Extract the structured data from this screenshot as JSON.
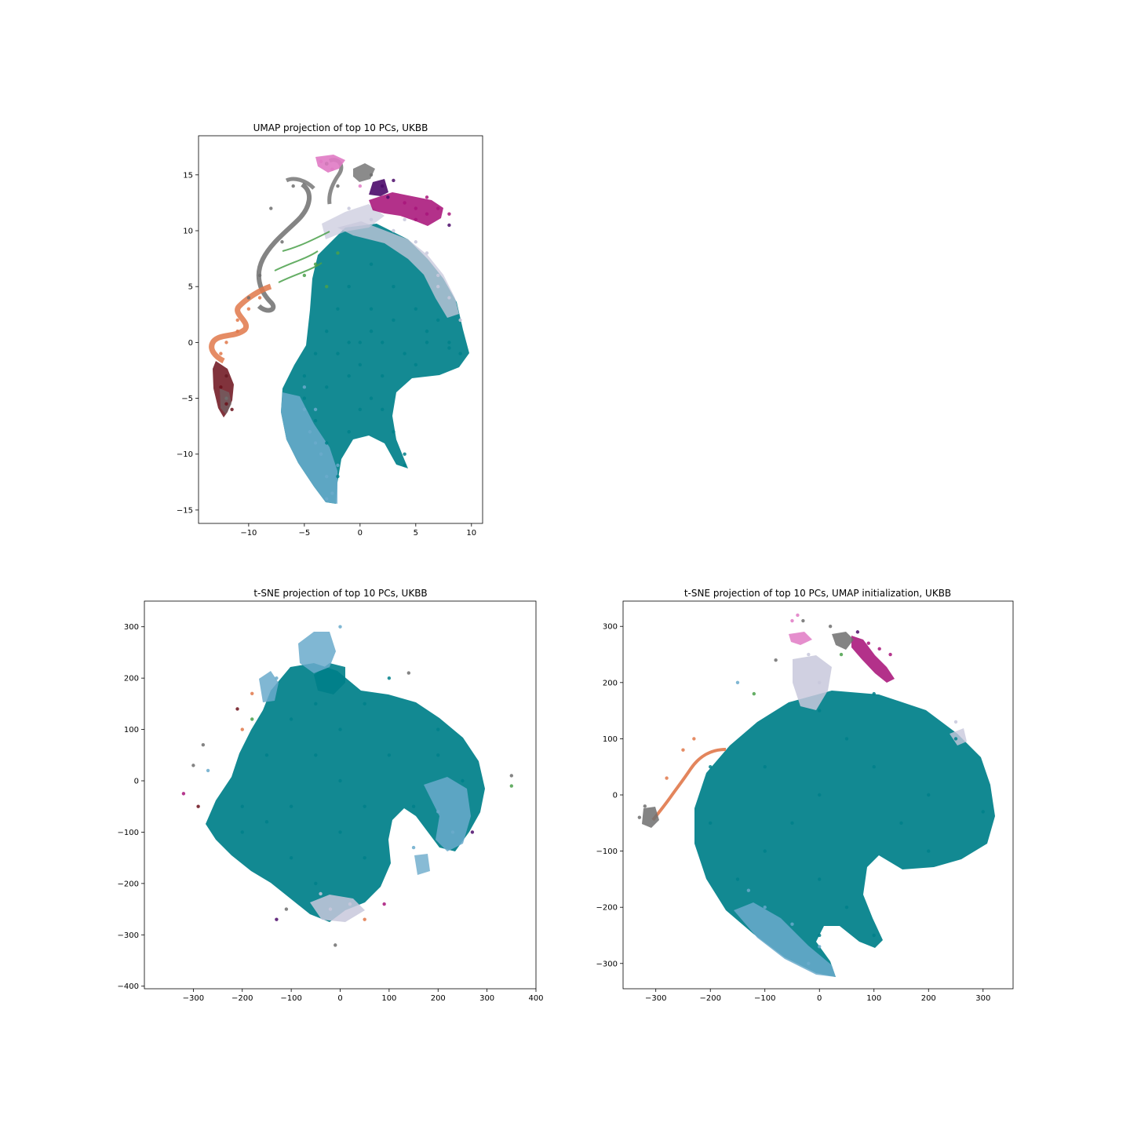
{
  "colors": {
    "teal": "#00808a",
    "lightblue": "#6aaacb",
    "lavender": "#c8c8dc",
    "gray": "#6e6e6e",
    "orange": "#e0784a",
    "maroon": "#6b0f1a",
    "magenta": "#a8157a",
    "purple": "#4b0a6a",
    "pink": "#e07ac4",
    "green": "#4aa04a"
  },
  "chart_data": [
    {
      "type": "scatter",
      "title": "UMAP projection of top 10 PCs, UKBB",
      "xlim": [
        -14.5,
        11
      ],
      "ylim": [
        -16.2,
        18.5
      ],
      "xticks": [
        -10,
        -5,
        0,
        5,
        10
      ],
      "yticks": [
        -15,
        -10,
        -5,
        0,
        5,
        10,
        15
      ],
      "xticklabels": [
        "−10",
        "−5",
        "0",
        "5",
        "10"
      ],
      "yticklabels": [
        "−15",
        "−10",
        "−5",
        "0",
        "5",
        "10",
        "15"
      ],
      "series": [
        {
          "color": "teal",
          "points": [
            [
              0,
              0
            ],
            [
              2,
              0
            ],
            [
              4,
              -1
            ],
            [
              6,
              0
            ],
            [
              8,
              0
            ],
            [
              9,
              -1
            ],
            [
              7,
              2
            ],
            [
              5,
              3
            ],
            [
              3,
              5
            ],
            [
              1,
              7
            ],
            [
              -1,
              5
            ],
            [
              -2,
              3
            ],
            [
              -3,
              1
            ],
            [
              -4,
              -1
            ],
            [
              -5,
              -3
            ],
            [
              -5,
              -5
            ],
            [
              -4,
              -7
            ],
            [
              -3,
              -9
            ],
            [
              -2,
              -12
            ],
            [
              -1,
              -8
            ],
            [
              0,
              -6
            ],
            [
              1,
              -5
            ],
            [
              2,
              -6
            ],
            [
              3,
              -8
            ],
            [
              4,
              -10
            ],
            [
              4,
              -11
            ],
            [
              2,
              -3
            ],
            [
              0,
              -2
            ],
            [
              -2,
              -1
            ],
            [
              1,
              3
            ],
            [
              3,
              2
            ],
            [
              6,
              1
            ],
            [
              8,
              -0.5
            ],
            [
              -1,
              0
            ],
            [
              -3,
              -4
            ],
            [
              1,
              1
            ],
            [
              -1,
              -3
            ],
            [
              5,
              -2
            ]
          ]
        },
        {
          "color": "lightblue",
          "points": [
            [
              -5,
              -4
            ],
            [
              -4,
              -6
            ],
            [
              -4.5,
              -8
            ],
            [
              -3.5,
              -10
            ],
            [
              -3,
              -12
            ],
            [
              -2.5,
              -13.5
            ],
            [
              -3,
              -14
            ],
            [
              -4,
              -9
            ],
            [
              -5,
              -6
            ],
            [
              -2,
              -11
            ]
          ]
        },
        {
          "color": "lavender",
          "points": [
            [
              3,
              10
            ],
            [
              5,
              9
            ],
            [
              7,
              6
            ],
            [
              8,
              4
            ],
            [
              9,
              2
            ],
            [
              6,
              8
            ],
            [
              4,
              11
            ],
            [
              -1,
              12
            ],
            [
              1,
              11
            ],
            [
              7,
              5
            ]
          ]
        },
        {
          "color": "gray",
          "points": [
            [
              -3,
              16
            ],
            [
              -6,
              14
            ],
            [
              -8,
              12
            ],
            [
              -7,
              9
            ],
            [
              -9,
              6
            ],
            [
              -10,
              4
            ],
            [
              -12,
              -5
            ],
            [
              -12,
              -3
            ],
            [
              1,
              15
            ],
            [
              -2,
              14
            ]
          ]
        },
        {
          "color": "orange",
          "points": [
            [
              -11,
              2
            ],
            [
              -12,
              0
            ],
            [
              -12.5,
              -1
            ],
            [
              -11,
              1
            ],
            [
              -10,
              3
            ],
            [
              -9,
              4
            ]
          ]
        },
        {
          "color": "maroon",
          "points": [
            [
              -12,
              -3
            ],
            [
              -12.5,
              -4
            ],
            [
              -12,
              -5.5
            ],
            [
              -11.5,
              -6
            ]
          ]
        },
        {
          "color": "magenta",
          "points": [
            [
              5,
              12
            ],
            [
              6,
              13
            ],
            [
              7,
              12
            ],
            [
              8,
              11.5
            ],
            [
              5,
              11
            ],
            [
              4,
              12.5
            ],
            [
              6,
              11.5
            ]
          ]
        },
        {
          "color": "purple",
          "points": [
            [
              2,
              14
            ],
            [
              2.5,
              13
            ],
            [
              3,
              14.5
            ],
            [
              8,
              10.5
            ]
          ]
        },
        {
          "color": "pink",
          "points": [
            [
              -3.5,
              16.2
            ],
            [
              -2.5,
              15.5
            ],
            [
              -3,
              16
            ],
            [
              0,
              14
            ]
          ]
        },
        {
          "color": "green",
          "points": [
            [
              -5,
              6
            ],
            [
              -4,
              7
            ],
            [
              -3,
              5
            ],
            [
              -2,
              8
            ]
          ]
        }
      ]
    },
    {
      "type": "scatter",
      "title": "t-SNE projection of top 10 PCs, UKBB",
      "xlim": [
        -400,
        400
      ],
      "ylim": [
        -405,
        350
      ],
      "xticks": [
        -300,
        -200,
        -100,
        0,
        100,
        200,
        300,
        400
      ],
      "yticks": [
        -400,
        -300,
        -200,
        -100,
        0,
        100,
        200,
        300
      ],
      "xticklabels": [
        "−300",
        "−200",
        "−100",
        "0",
        "100",
        "200",
        "300",
        "400"
      ],
      "yticklabels": [
        "−400",
        "−300",
        "−200",
        "−100",
        "0",
        "100",
        "200",
        "300"
      ],
      "series": [
        {
          "color": "teal",
          "points": [
            [
              0,
              0
            ],
            [
              -100,
              -50
            ],
            [
              -200,
              -50
            ],
            [
              -150,
              50
            ],
            [
              -50,
              150
            ],
            [
              50,
              150
            ],
            [
              100,
              200
            ],
            [
              200,
              100
            ],
            [
              250,
              0
            ],
            [
              150,
              -50
            ],
            [
              50,
              -150
            ],
            [
              -50,
              -200
            ],
            [
              -100,
              -150
            ],
            [
              -200,
              -100
            ],
            [
              0,
              100
            ],
            [
              100,
              50
            ],
            [
              -50,
              50
            ],
            [
              50,
              -50
            ],
            [
              200,
              50
            ],
            [
              -150,
              -80
            ],
            [
              -100,
              120
            ],
            [
              0,
              -100
            ]
          ]
        },
        {
          "color": "lightblue",
          "points": [
            [
              0,
              300
            ],
            [
              -130,
              200
            ],
            [
              200,
              -60
            ],
            [
              230,
              -100
            ],
            [
              -270,
              20
            ],
            [
              150,
              -130
            ]
          ]
        },
        {
          "color": "lavender",
          "points": [
            [
              -20,
              -250
            ],
            [
              20,
              -240
            ],
            [
              -40,
              -220
            ]
          ]
        },
        {
          "color": "gray",
          "points": [
            [
              140,
              210
            ],
            [
              -10,
              -320
            ],
            [
              -110,
              -250
            ],
            [
              -280,
              70
            ],
            [
              -300,
              30
            ],
            [
              350,
              10
            ]
          ]
        },
        {
          "color": "magenta",
          "points": [
            [
              -320,
              -25
            ],
            [
              90,
              -240
            ]
          ]
        },
        {
          "color": "purple",
          "points": [
            [
              -130,
              -270
            ],
            [
              270,
              -100
            ]
          ]
        },
        {
          "color": "orange",
          "points": [
            [
              -200,
              100
            ],
            [
              -180,
              170
            ],
            [
              50,
              -270
            ]
          ]
        },
        {
          "color": "green",
          "points": [
            [
              -180,
              120
            ],
            [
              350,
              -10
            ]
          ]
        },
        {
          "color": "maroon",
          "points": [
            [
              -290,
              -50
            ],
            [
              -210,
              140
            ]
          ]
        }
      ]
    },
    {
      "type": "scatter",
      "title": "t-SNE projection of top 10 PCs, UMAP initialization, UKBB",
      "xlim": [
        -360,
        355
      ],
      "ylim": [
        -345,
        345
      ],
      "xticks": [
        -300,
        -200,
        -100,
        0,
        100,
        200,
        300
      ],
      "yticks": [
        -300,
        -200,
        -100,
        0,
        100,
        200,
        300
      ],
      "xticklabels": [
        "−300",
        "−200",
        "−100",
        "0",
        "100",
        "200",
        "300"
      ],
      "yticklabels": [
        "−300",
        "−200",
        "−100",
        "0",
        "100",
        "200",
        "300"
      ],
      "series": [
        {
          "color": "teal",
          "points": [
            [
              0,
              0
            ],
            [
              100,
              50
            ],
            [
              200,
              0
            ],
            [
              300,
              -30
            ],
            [
              250,
              100
            ],
            [
              100,
              180
            ],
            [
              0,
              150
            ],
            [
              -100,
              50
            ],
            [
              -200,
              -50
            ],
            [
              -150,
              -150
            ],
            [
              -100,
              -200
            ],
            [
              0,
              -150
            ],
            [
              50,
              -200
            ],
            [
              100,
              -250
            ],
            [
              150,
              -50
            ],
            [
              -50,
              -50
            ],
            [
              50,
              100
            ],
            [
              200,
              -100
            ],
            [
              -200,
              50
            ],
            [
              0,
              -250
            ],
            [
              -100,
              -100
            ]
          ]
        },
        {
          "color": "lightblue",
          "points": [
            [
              -100,
              -200
            ],
            [
              -50,
              -230
            ],
            [
              0,
              -270
            ],
            [
              -20,
              -300
            ],
            [
              -130,
              -170
            ],
            [
              -150,
              200
            ]
          ]
        },
        {
          "color": "lavender",
          "points": [
            [
              0,
              200
            ],
            [
              -20,
              250
            ],
            [
              250,
              130
            ]
          ]
        },
        {
          "color": "gray",
          "points": [
            [
              -80,
              240
            ],
            [
              -320,
              -20
            ],
            [
              -330,
              -40
            ],
            [
              -30,
              310
            ],
            [
              20,
              300
            ]
          ]
        },
        {
          "color": "magenta",
          "points": [
            [
              90,
              270
            ],
            [
              130,
              250
            ],
            [
              110,
              260
            ]
          ]
        },
        {
          "color": "purple",
          "points": [
            [
              70,
              290
            ]
          ]
        },
        {
          "color": "pink",
          "points": [
            [
              -40,
              320
            ],
            [
              -50,
              310
            ]
          ]
        },
        {
          "color": "orange",
          "points": [
            [
              -250,
              80
            ],
            [
              -280,
              30
            ],
            [
              -230,
              100
            ]
          ]
        },
        {
          "color": "green",
          "points": [
            [
              -120,
              180
            ],
            [
              40,
              250
            ]
          ]
        }
      ]
    }
  ]
}
